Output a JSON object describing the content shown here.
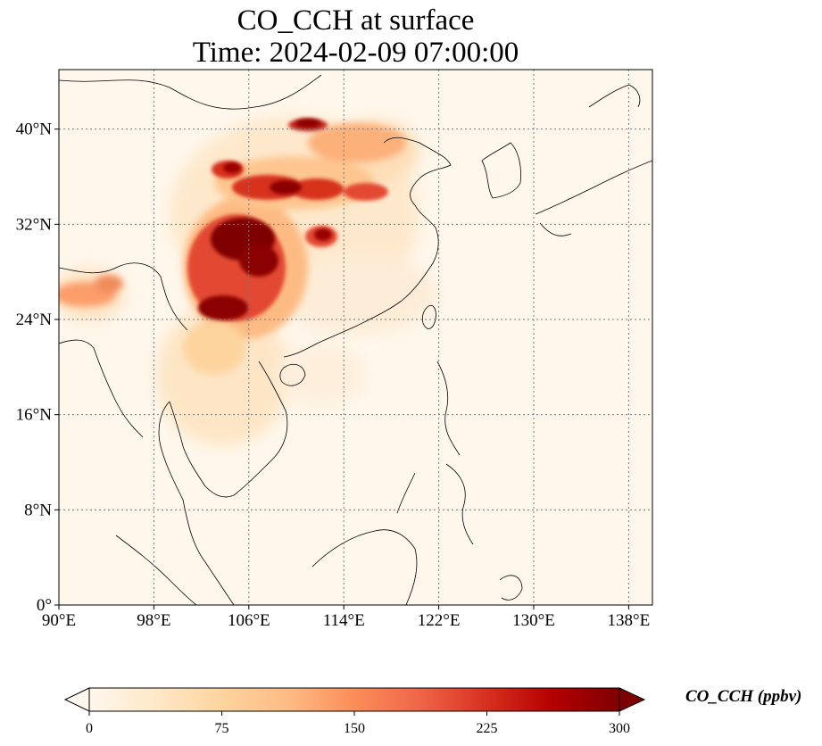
{
  "map": {
    "title_line1": "CO_CCH at surface",
    "title_line2": "Time: 2024-02-09 07:00:00",
    "variable": "CO_CCH",
    "colormap": "OrRd",
    "colors": {
      "low": "#fff7ec",
      "high": "#7f0000",
      "coast": "#000000",
      "grid": "#7a7a7a"
    },
    "extent": {
      "lon_min": 90,
      "lon_max": 140,
      "lat_min": 0,
      "lat_max": 45
    },
    "lon_ticks": [
      {
        "value": 90,
        "label": "90°E"
      },
      {
        "value": 98,
        "label": "98°E"
      },
      {
        "value": 106,
        "label": "106°E"
      },
      {
        "value": 114,
        "label": "114°E"
      },
      {
        "value": 122,
        "label": "122°E"
      },
      {
        "value": 130,
        "label": "130°E"
      },
      {
        "value": 138,
        "label": "138°E"
      }
    ],
    "lat_ticks": [
      {
        "value": 0,
        "label": "0°"
      },
      {
        "value": 8,
        "label": "8°N"
      },
      {
        "value": 16,
        "label": "16°N"
      },
      {
        "value": 24,
        "label": "24°N"
      },
      {
        "value": 32,
        "label": "32°N"
      },
      {
        "value": 40,
        "label": "40°N"
      }
    ],
    "gridlines": true,
    "colorbar": {
      "label": "CO_CCH (ppbv)",
      "min": 0,
      "max": 300,
      "extend": "both",
      "ticks": [
        {
          "value": 0,
          "label": "0"
        },
        {
          "value": 75,
          "label": "75"
        },
        {
          "value": 150,
          "label": "150"
        },
        {
          "value": 225,
          "label": "225"
        },
        {
          "value": 300,
          "label": "300"
        }
      ]
    }
  }
}
